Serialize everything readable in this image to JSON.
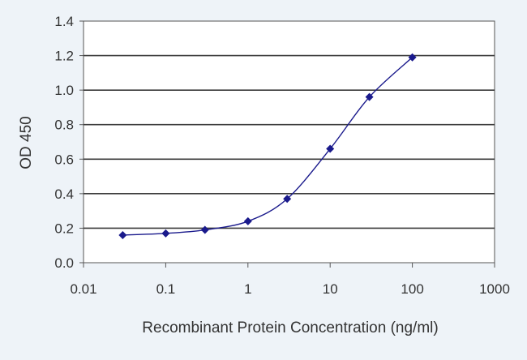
{
  "chart_data": {
    "type": "scatter",
    "xscale": "log",
    "x_ticks": [
      0.01,
      0.1,
      1,
      10,
      100,
      1000
    ],
    "x_tick_labels": [
      "0.01",
      "0.1",
      "1",
      "10",
      "100",
      "1000"
    ],
    "y_ticks": [
      0,
      0.2,
      0.4,
      0.6,
      0.8,
      1.0,
      1.2,
      1.4
    ],
    "y_tick_labels": [
      "0.0",
      "0.2",
      "0.4",
      "0.6",
      "0.8",
      "1.0",
      "1.2",
      "1.4"
    ],
    "xlim": [
      0.01,
      1000
    ],
    "ylim": [
      0,
      1.4
    ],
    "xlabel": "Recombinant Protein Concentration (ng/ml)",
    "ylabel": "OD 450",
    "grid": "horizontal",
    "series": [
      {
        "x": [
          0.03,
          0.1,
          0.3,
          1,
          3,
          10,
          30,
          100
        ],
        "y": [
          0.16,
          0.17,
          0.19,
          0.24,
          0.37,
          0.66,
          0.96,
          1.19
        ],
        "color": "#1a1a8c",
        "marker": "diamond",
        "fit_line": true
      }
    ]
  },
  "colors": {
    "background": "#eef3f8",
    "plot_background": "#ffffff",
    "grid": "#3a3a3a",
    "series": "#1a1a8c"
  }
}
